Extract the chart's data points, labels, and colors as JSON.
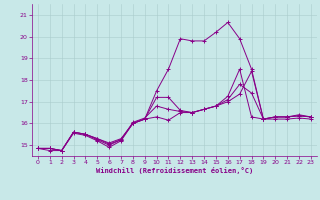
{
  "bg_color": "#c8e8e8",
  "grid_color": "#aacccc",
  "line_color": "#880088",
  "ylim": [
    14.5,
    21.5
  ],
  "xlim": [
    -0.5,
    23.5
  ],
  "yticks": [
    15,
    16,
    17,
    18,
    19,
    20,
    21
  ],
  "xticks": [
    0,
    1,
    2,
    3,
    4,
    5,
    6,
    7,
    8,
    9,
    10,
    11,
    12,
    13,
    14,
    15,
    16,
    17,
    18,
    19,
    20,
    21,
    22,
    23
  ],
  "xlabel": "Windchill (Refroidissement éolien,°C)",
  "series": [
    [
      14.85,
      14.85,
      14.75,
      15.6,
      15.5,
      15.3,
      15.1,
      15.3,
      16.0,
      16.2,
      16.3,
      16.15,
      16.5,
      16.5,
      16.65,
      16.8,
      17.0,
      17.35,
      18.4,
      16.2,
      16.3,
      16.3,
      16.4,
      16.3
    ],
    [
      14.85,
      14.75,
      14.75,
      15.55,
      15.45,
      15.2,
      14.9,
      15.2,
      16.0,
      16.2,
      17.5,
      18.5,
      19.9,
      19.8,
      19.8,
      20.2,
      20.65,
      19.9,
      18.5,
      16.2,
      16.2,
      16.2,
      16.25,
      16.2
    ],
    [
      14.85,
      14.85,
      14.75,
      15.6,
      15.5,
      15.25,
      15.0,
      15.25,
      16.0,
      16.2,
      17.2,
      17.2,
      16.6,
      16.5,
      16.65,
      16.8,
      17.25,
      18.5,
      16.3,
      16.2,
      16.3,
      16.3,
      16.35,
      16.3
    ],
    [
      14.85,
      14.85,
      14.75,
      15.6,
      15.5,
      15.3,
      15.05,
      15.25,
      16.05,
      16.25,
      16.8,
      16.65,
      16.55,
      16.5,
      16.65,
      16.8,
      17.1,
      17.8,
      17.4,
      16.2,
      16.3,
      16.3,
      16.35,
      16.3
    ]
  ]
}
